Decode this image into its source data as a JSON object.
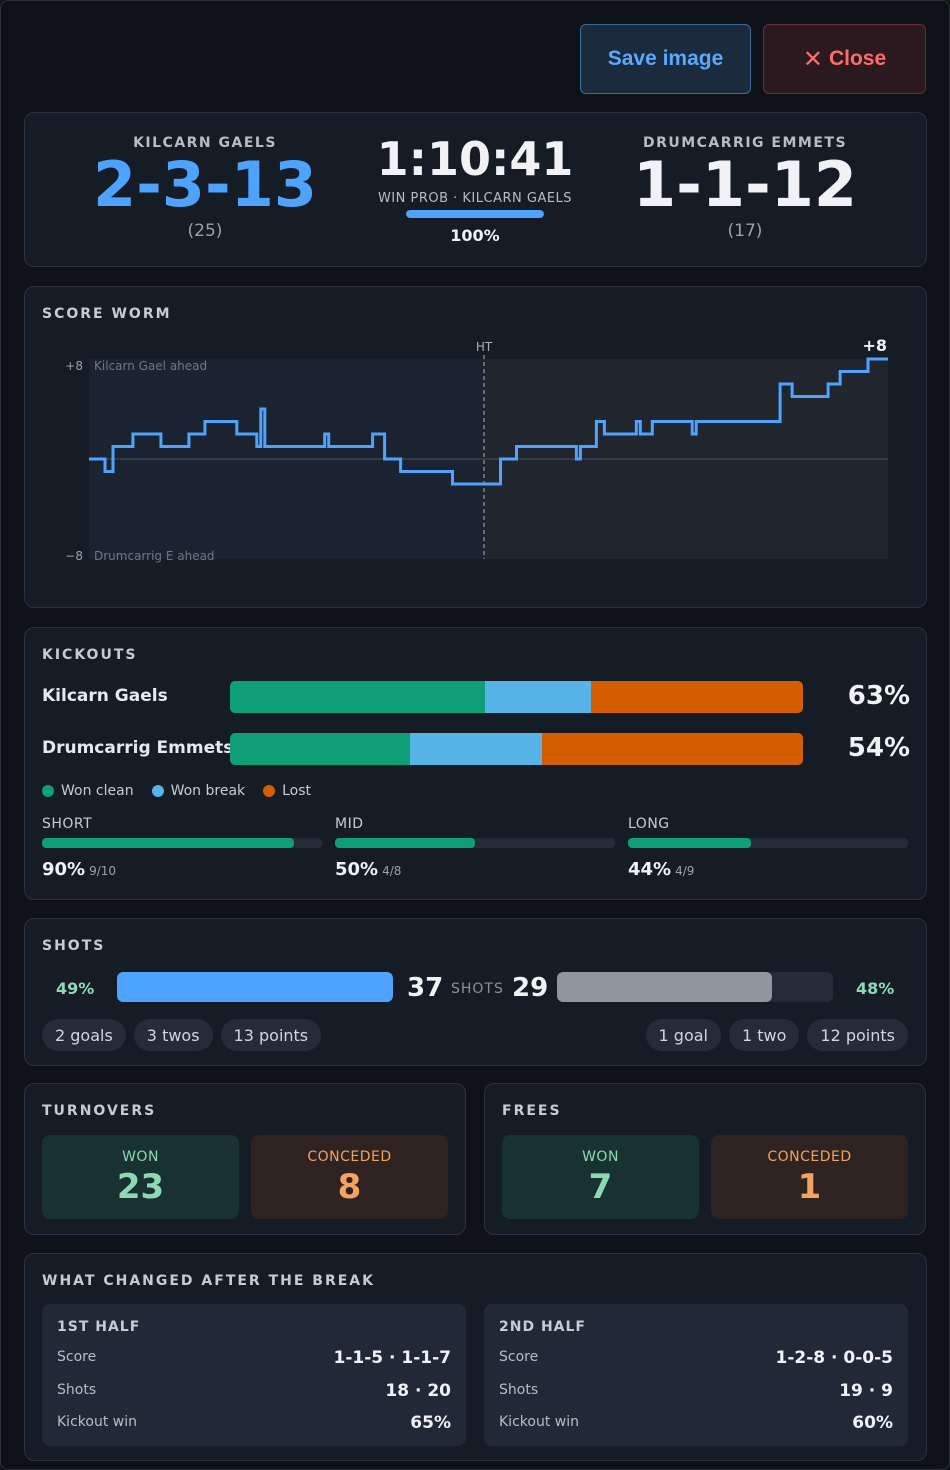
{
  "toolbar": {
    "save_label": "Save image",
    "close_label": "Close"
  },
  "scoreboard": {
    "home": {
      "name": "KILCARN GAELS",
      "score": "2-3-13",
      "total": "(25)"
    },
    "away": {
      "name": "DRUMCARRIG EMMETS",
      "score": "1-1-12",
      "total": "(17)"
    },
    "clock": "1:10:41",
    "win_prob_label": "WIN PROB · KILCARN GAELS",
    "win_prob_value": "100%",
    "win_prob_fraction": 1.0,
    "home_color": "#4da3ff"
  },
  "worm": {
    "title": "SCORE WORM",
    "top_label": "+8",
    "top_caption": "Kilcarn Gael ahead",
    "bottom_label": "−8",
    "bottom_caption": "Drumcarrig E ahead",
    "ht_label": "HT",
    "final_label": "+8",
    "chart_data": {
      "type": "line",
      "ylim": [
        -8,
        8
      ],
      "ht_fraction": 0.495,
      "points": [
        [
          0.0,
          0
        ],
        [
          0.02,
          0
        ],
        [
          0.02,
          -1
        ],
        [
          0.03,
          -1
        ],
        [
          0.03,
          1
        ],
        [
          0.055,
          1
        ],
        [
          0.055,
          2
        ],
        [
          0.09,
          2
        ],
        [
          0.09,
          1
        ],
        [
          0.125,
          1
        ],
        [
          0.125,
          2
        ],
        [
          0.145,
          2
        ],
        [
          0.145,
          3
        ],
        [
          0.185,
          3
        ],
        [
          0.185,
          2
        ],
        [
          0.21,
          2
        ],
        [
          0.21,
          1
        ],
        [
          0.215,
          1
        ],
        [
          0.215,
          4
        ],
        [
          0.22,
          4
        ],
        [
          0.22,
          1
        ],
        [
          0.295,
          1
        ],
        [
          0.295,
          2
        ],
        [
          0.3,
          2
        ],
        [
          0.3,
          1
        ],
        [
          0.355,
          1
        ],
        [
          0.355,
          2
        ],
        [
          0.37,
          2
        ],
        [
          0.37,
          0
        ],
        [
          0.39,
          0
        ],
        [
          0.39,
          -1
        ],
        [
          0.455,
          -1
        ],
        [
          0.455,
          -2
        ],
        [
          0.515,
          -2
        ],
        [
          0.515,
          0
        ],
        [
          0.535,
          0
        ],
        [
          0.535,
          1
        ],
        [
          0.61,
          1
        ],
        [
          0.61,
          0
        ],
        [
          0.615,
          0
        ],
        [
          0.615,
          1
        ],
        [
          0.635,
          1
        ],
        [
          0.635,
          3
        ],
        [
          0.645,
          3
        ],
        [
          0.645,
          2
        ],
        [
          0.685,
          2
        ],
        [
          0.685,
          3
        ],
        [
          0.69,
          3
        ],
        [
          0.69,
          2
        ],
        [
          0.705,
          2
        ],
        [
          0.705,
          3
        ],
        [
          0.755,
          3
        ],
        [
          0.755,
          2
        ],
        [
          0.76,
          2
        ],
        [
          0.76,
          3
        ],
        [
          0.865,
          3
        ],
        [
          0.865,
          6
        ],
        [
          0.88,
          6
        ],
        [
          0.88,
          5
        ],
        [
          0.925,
          5
        ],
        [
          0.925,
          6
        ],
        [
          0.94,
          6
        ],
        [
          0.94,
          7
        ],
        [
          0.975,
          7
        ],
        [
          0.975,
          8
        ],
        [
          1.0,
          8
        ]
      ]
    }
  },
  "kickouts": {
    "title": "KICKOUTS",
    "rows": [
      {
        "name": "Kilcarn Gaels",
        "won_clean": 0.445,
        "won_break": 0.185,
        "lost": 0.37,
        "pct": "63%"
      },
      {
        "name": "Drumcarrig Emmets",
        "won_clean": 0.315,
        "won_break": 0.23,
        "lost": 0.455,
        "pct": "54%"
      }
    ],
    "legend": [
      {
        "label": "Won clean",
        "color": "#0e9f77"
      },
      {
        "label": "Won break",
        "color": "#56b4e9"
      },
      {
        "label": "Lost",
        "color": "#d55e00"
      }
    ],
    "lengths": [
      {
        "label": "SHORT",
        "pct": "90%",
        "detail": "9/10",
        "fraction": 0.9
      },
      {
        "label": "MID",
        "pct": "50%",
        "detail": "4/8",
        "fraction": 0.5
      },
      {
        "label": "LONG",
        "pct": "44%",
        "detail": "4/9",
        "fraction": 0.44
      }
    ]
  },
  "shots": {
    "title": "SHOTS",
    "label": "SHOTS",
    "home": {
      "pct": "49%",
      "count": "37",
      "fraction": 1.0,
      "chips": [
        "2 goals",
        "3 twos",
        "13 points"
      ]
    },
    "away": {
      "pct": "48%",
      "count": "29",
      "fraction": 0.78,
      "chips": [
        "1 goal",
        "1 two",
        "12 points"
      ]
    }
  },
  "turnovers": {
    "title": "TURNOVERS",
    "won_label": "WON",
    "won": "23",
    "conceded_label": "CONCEDED",
    "conceded": "8"
  },
  "frees": {
    "title": "FREES",
    "won_label": "WON",
    "won": "7",
    "conceded_label": "CONCEDED",
    "conceded": "1"
  },
  "halves": {
    "title": "WHAT CHANGED AFTER THE BREAK",
    "items": [
      {
        "title": "1ST HALF",
        "rows": [
          {
            "label": "Score",
            "value": "1-1-5 · 1-1-7"
          },
          {
            "label": "Shots",
            "value": "18 · 20"
          },
          {
            "label": "Kickout win",
            "value": "65%"
          }
        ]
      },
      {
        "title": "2ND HALF",
        "rows": [
          {
            "label": "Score",
            "value": "1-2-8 · 0-0-5"
          },
          {
            "label": "Shots",
            "value": "19 · 9"
          },
          {
            "label": "Kickout win",
            "value": "60%"
          }
        ]
      }
    ]
  }
}
